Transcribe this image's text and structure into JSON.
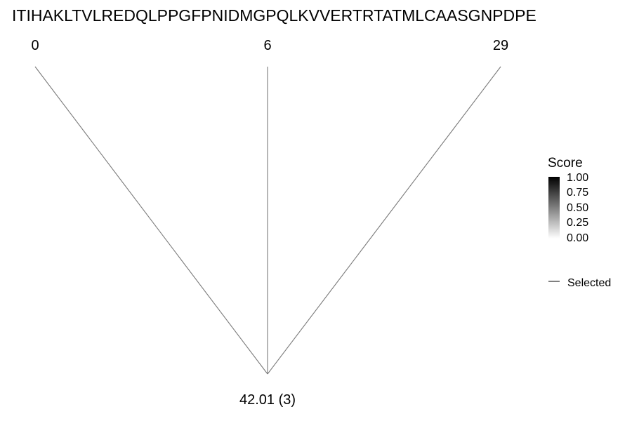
{
  "sequence": "ITIHAKLTVLREDQLPPGFPNIDMGPQLKVVERTRTATMLCAASGNPDPE",
  "tree": {
    "leaves": [
      {
        "label": "0"
      },
      {
        "label": "6"
      },
      {
        "label": "29"
      }
    ],
    "root": {
      "label": "42.01 (3)"
    },
    "edge_color": "#7a7a7a"
  },
  "legend": {
    "score": {
      "title": "Score",
      "ticks": [
        "1.00",
        "0.75",
        "0.50",
        "0.25",
        "0.00"
      ],
      "gradient_high": "#000000",
      "gradient_low": "#ffffff"
    },
    "selected": {
      "label": "Selected",
      "color": "#000000"
    }
  }
}
